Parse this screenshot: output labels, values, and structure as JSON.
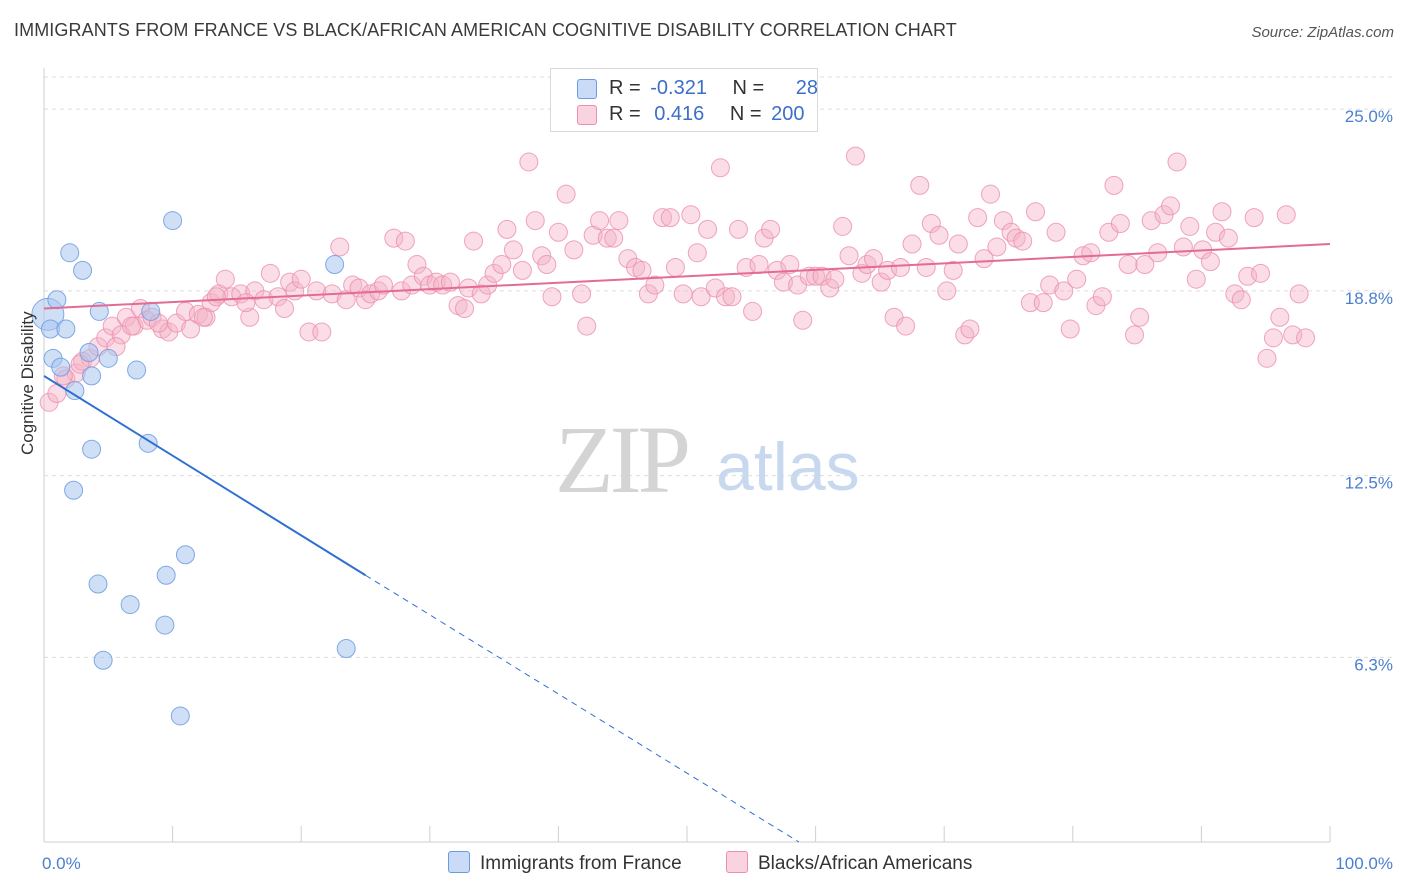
{
  "title": "IMMIGRANTS FROM FRANCE VS BLACK/AFRICAN AMERICAN COGNITIVE DISABILITY CORRELATION CHART",
  "source": "Source: ZipAtlas.com",
  "watermark": {
    "zip": "ZIP",
    "atlas": "atlas"
  },
  "colors": {
    "blue": "#a7c4ef",
    "blue_stroke": "#6d9be0",
    "blue_line": "#2e6fd1",
    "pink": "#f4b3c8",
    "pink_stroke": "#ec8fae",
    "pink_line": "#e36b95",
    "axis_text": "#4a7fd0",
    "grid": "#dcdcdc"
  },
  "legend": {
    "rows": [
      {
        "r_label": "R =",
        "r_value": "-0.321",
        "n_label": "N =",
        "n_value": "28",
        "color": "#a7c4ef"
      },
      {
        "r_label": "R =",
        "r_value": " 0.416",
        "n_label": "N =",
        "n_value": "200",
        "color": "#f4b3c8"
      }
    ]
  },
  "bottom_legend": {
    "series1": "Immigrants from France",
    "series2": "Blacks/African Americans"
  },
  "chart_data": {
    "type": "scatter",
    "ylabel": "Cognitive Disability",
    "xlabel": "",
    "xlim": [
      0,
      100
    ],
    "ylim": [
      0,
      26.2
    ],
    "x_tick_labels": [
      "0.0%",
      "100.0%"
    ],
    "y_ticks": [
      {
        "value": 6.3,
        "label": "6.3%"
      },
      {
        "value": 12.5,
        "label": "12.5%"
      },
      {
        "value": 18.8,
        "label": "18.8%"
      },
      {
        "value": 25.0,
        "label": "25.0%"
      }
    ],
    "grid": "horizontal dashed",
    "series": [
      {
        "name": "Immigrants from France",
        "color": "#a7c4ef",
        "trend": {
          "x0": 0,
          "y0": 15.9,
          "x1": 25,
          "y1": 9.1,
          "x_dash_end": 58.7,
          "y_dash_end": 0
        },
        "points": [
          [
            0.3,
            18.0
          ],
          [
            0.5,
            17.5
          ],
          [
            0.7,
            16.5
          ],
          [
            1.0,
            18.5
          ],
          [
            1.3,
            16.2
          ],
          [
            1.7,
            17.5
          ],
          [
            2.0,
            20.1
          ],
          [
            3.0,
            19.5
          ],
          [
            3.5,
            16.7
          ],
          [
            3.7,
            15.9
          ],
          [
            4.3,
            18.1
          ],
          [
            5.0,
            16.5
          ],
          [
            7.2,
            16.1
          ],
          [
            8.3,
            18.1
          ],
          [
            10.0,
            21.2
          ],
          [
            22.6,
            19.7
          ],
          [
            3.7,
            13.4
          ],
          [
            2.3,
            12.0
          ],
          [
            8.1,
            13.6
          ],
          [
            11.0,
            9.8
          ],
          [
            9.5,
            9.1
          ],
          [
            4.2,
            8.8
          ],
          [
            6.7,
            8.1
          ],
          [
            9.4,
            7.4
          ],
          [
            23.5,
            6.6
          ],
          [
            4.6,
            6.2
          ],
          [
            10.6,
            4.3
          ],
          [
            2.4,
            15.4
          ]
        ]
      },
      {
        "name": "Blacks/African Americans",
        "color": "#f4b3c8",
        "trend": {
          "x0": 0,
          "y0": 18.2,
          "x1": 100,
          "y1": 20.4
        },
        "points": [
          [
            0.4,
            15.0
          ],
          [
            1.0,
            15.3
          ],
          [
            1.7,
            15.8
          ],
          [
            2.5,
            16.0
          ],
          [
            3.0,
            16.4
          ],
          [
            3.6,
            16.5
          ],
          [
            4.2,
            16.9
          ],
          [
            4.8,
            17.2
          ],
          [
            5.3,
            17.6
          ],
          [
            6.0,
            17.3
          ],
          [
            6.4,
            17.9
          ],
          [
            7.0,
            17.6
          ],
          [
            7.5,
            18.2
          ],
          [
            8.0,
            17.8
          ],
          [
            8.4,
            17.9
          ],
          [
            9.2,
            17.5
          ],
          [
            9.7,
            17.4
          ],
          [
            10.3,
            17.7
          ],
          [
            11.0,
            18.1
          ],
          [
            11.4,
            17.5
          ],
          [
            12.0,
            18.0
          ],
          [
            12.6,
            17.9
          ],
          [
            13.0,
            18.4
          ],
          [
            13.6,
            18.7
          ],
          [
            14.1,
            19.2
          ],
          [
            14.6,
            18.6
          ],
          [
            15.3,
            18.7
          ],
          [
            16.0,
            17.9
          ],
          [
            16.4,
            18.8
          ],
          [
            17.1,
            18.5
          ],
          [
            17.6,
            19.4
          ],
          [
            18.2,
            18.6
          ],
          [
            18.7,
            18.2
          ],
          [
            19.1,
            19.1
          ],
          [
            19.5,
            18.8
          ],
          [
            20.0,
            19.2
          ],
          [
            20.6,
            17.4
          ],
          [
            21.2,
            18.8
          ],
          [
            21.6,
            17.4
          ],
          [
            22.4,
            18.7
          ],
          [
            23.0,
            20.3
          ],
          [
            23.5,
            18.5
          ],
          [
            24.0,
            19.0
          ],
          [
            24.5,
            18.9
          ],
          [
            25.0,
            18.5
          ],
          [
            25.4,
            18.7
          ],
          [
            26.0,
            18.8
          ],
          [
            26.4,
            19.0
          ],
          [
            27.2,
            20.6
          ],
          [
            27.8,
            18.8
          ],
          [
            28.1,
            20.5
          ],
          [
            28.6,
            19.0
          ],
          [
            29.0,
            19.7
          ],
          [
            29.5,
            19.3
          ],
          [
            30.0,
            19.0
          ],
          [
            30.5,
            19.1
          ],
          [
            31.0,
            19.0
          ],
          [
            31.6,
            19.1
          ],
          [
            32.2,
            18.3
          ],
          [
            32.7,
            18.2
          ],
          [
            33.0,
            18.9
          ],
          [
            33.4,
            20.5
          ],
          [
            34.0,
            18.7
          ],
          [
            34.5,
            19.0
          ],
          [
            35.0,
            19.4
          ],
          [
            35.6,
            19.7
          ],
          [
            36.0,
            20.9
          ],
          [
            36.5,
            20.2
          ],
          [
            37.2,
            19.5
          ],
          [
            37.7,
            23.2
          ],
          [
            38.2,
            21.2
          ],
          [
            38.7,
            20.0
          ],
          [
            39.1,
            19.7
          ],
          [
            39.5,
            18.6
          ],
          [
            40.0,
            20.8
          ],
          [
            40.6,
            22.1
          ],
          [
            41.2,
            20.2
          ],
          [
            41.8,
            18.7
          ],
          [
            42.2,
            17.6
          ],
          [
            42.7,
            20.7
          ],
          [
            43.2,
            21.2
          ],
          [
            43.8,
            20.6
          ],
          [
            44.3,
            20.6
          ],
          [
            44.7,
            21.2
          ],
          [
            45.4,
            19.9
          ],
          [
            46.0,
            19.6
          ],
          [
            46.5,
            19.5
          ],
          [
            47.0,
            18.7
          ],
          [
            47.5,
            19.0
          ],
          [
            48.1,
            21.3
          ],
          [
            48.7,
            21.3
          ],
          [
            49.1,
            19.6
          ],
          [
            49.7,
            18.7
          ],
          [
            50.3,
            21.4
          ],
          [
            50.8,
            20.1
          ],
          [
            51.1,
            18.6
          ],
          [
            51.6,
            20.9
          ],
          [
            52.2,
            18.9
          ],
          [
            52.6,
            23.0
          ],
          [
            53.0,
            18.6
          ],
          [
            53.5,
            18.6
          ],
          [
            54.0,
            20.9
          ],
          [
            54.6,
            19.6
          ],
          [
            55.1,
            18.1
          ],
          [
            55.6,
            19.7
          ],
          [
            56.0,
            20.6
          ],
          [
            56.5,
            20.9
          ],
          [
            57.0,
            19.5
          ],
          [
            57.5,
            19.1
          ],
          [
            58.0,
            19.7
          ],
          [
            58.6,
            19.0
          ],
          [
            59.0,
            17.8
          ],
          [
            59.5,
            19.3
          ],
          [
            60.0,
            19.3
          ],
          [
            60.5,
            19.3
          ],
          [
            61.1,
            18.9
          ],
          [
            61.5,
            19.2
          ],
          [
            62.1,
            21.0
          ],
          [
            62.6,
            20.0
          ],
          [
            63.1,
            23.4
          ],
          [
            63.6,
            19.4
          ],
          [
            64.0,
            19.7
          ],
          [
            64.5,
            19.9
          ],
          [
            65.1,
            19.1
          ],
          [
            65.6,
            19.5
          ],
          [
            66.1,
            17.9
          ],
          [
            66.6,
            19.6
          ],
          [
            67.0,
            17.6
          ],
          [
            67.5,
            20.4
          ],
          [
            68.1,
            22.4
          ],
          [
            68.6,
            19.6
          ],
          [
            69.0,
            21.1
          ],
          [
            69.6,
            20.7
          ],
          [
            70.2,
            18.8
          ],
          [
            70.7,
            19.5
          ],
          [
            71.1,
            20.4
          ],
          [
            71.6,
            17.3
          ],
          [
            72.0,
            17.5
          ],
          [
            72.6,
            21.3
          ],
          [
            73.1,
            19.9
          ],
          [
            73.6,
            22.1
          ],
          [
            74.1,
            20.3
          ],
          [
            74.6,
            21.2
          ],
          [
            75.2,
            20.8
          ],
          [
            75.6,
            20.6
          ],
          [
            76.1,
            20.5
          ],
          [
            76.7,
            18.4
          ],
          [
            77.1,
            21.5
          ],
          [
            77.7,
            18.4
          ],
          [
            78.2,
            19.0
          ],
          [
            78.7,
            20.8
          ],
          [
            79.3,
            18.8
          ],
          [
            79.8,
            17.5
          ],
          [
            80.3,
            19.2
          ],
          [
            80.8,
            20.0
          ],
          [
            81.4,
            20.1
          ],
          [
            81.8,
            18.3
          ],
          [
            82.3,
            18.6
          ],
          [
            82.8,
            20.8
          ],
          [
            83.2,
            22.4
          ],
          [
            83.7,
            21.1
          ],
          [
            84.3,
            19.7
          ],
          [
            84.8,
            17.3
          ],
          [
            85.2,
            17.9
          ],
          [
            85.6,
            19.7
          ],
          [
            86.1,
            21.2
          ],
          [
            86.6,
            20.1
          ],
          [
            87.1,
            21.4
          ],
          [
            87.6,
            21.7
          ],
          [
            88.1,
            23.2
          ],
          [
            88.6,
            20.3
          ],
          [
            89.1,
            21.0
          ],
          [
            89.6,
            19.2
          ],
          [
            90.1,
            20.2
          ],
          [
            90.7,
            19.8
          ],
          [
            91.1,
            20.8
          ],
          [
            91.6,
            21.5
          ],
          [
            92.1,
            20.6
          ],
          [
            92.6,
            18.7
          ],
          [
            93.1,
            18.5
          ],
          [
            93.6,
            19.3
          ],
          [
            94.1,
            21.3
          ],
          [
            94.6,
            19.4
          ],
          [
            95.1,
            16.5
          ],
          [
            95.6,
            17.2
          ],
          [
            96.1,
            17.9
          ],
          [
            96.6,
            21.4
          ],
          [
            97.1,
            17.3
          ],
          [
            97.6,
            18.7
          ],
          [
            98.1,
            17.2
          ],
          [
            1.5,
            15.9
          ],
          [
            2.8,
            16.3
          ],
          [
            5.6,
            16.9
          ],
          [
            6.8,
            17.6
          ],
          [
            8.9,
            17.7
          ],
          [
            12.4,
            17.9
          ],
          [
            13.4,
            18.6
          ],
          [
            15.7,
            18.4
          ]
        ]
      }
    ]
  }
}
